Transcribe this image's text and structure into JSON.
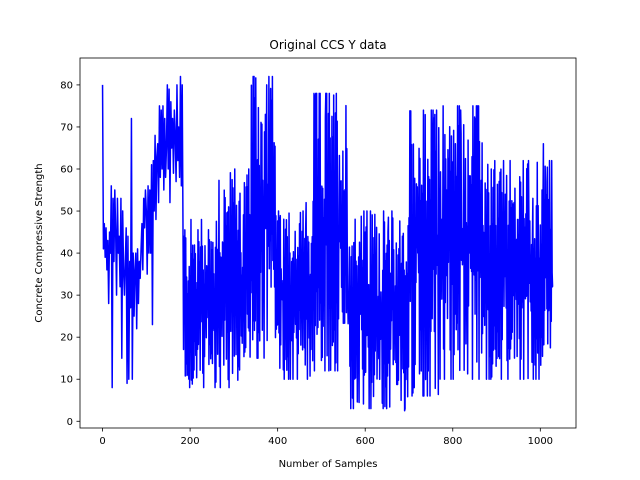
{
  "chart_data": {
    "type": "line",
    "title": "Original CCS Y data",
    "xlabel": "Number of Samples",
    "ylabel": "Concrete Compressive Strength",
    "xlim": [
      -51.5,
      1081.5
    ],
    "ylim": [
      -1.6,
      86.4
    ],
    "xticks": [
      0,
      200,
      400,
      600,
      800,
      1000
    ],
    "yticks": [
      0,
      10,
      20,
      30,
      40,
      50,
      60,
      70,
      80
    ],
    "grid": false,
    "series": [
      {
        "color": "#0000ff",
        "n_points": 1030,
        "waypoints": [
          [
            0,
            80
          ],
          [
            2,
            41
          ],
          [
            4,
            47
          ],
          [
            6,
            39
          ],
          [
            8,
            46
          ],
          [
            10,
            36
          ],
          [
            12,
            43
          ],
          [
            14,
            28
          ],
          [
            16,
            45
          ],
          [
            18,
            40
          ],
          [
            20,
            56
          ],
          [
            22,
            8
          ],
          [
            24,
            53
          ],
          [
            26,
            38
          ],
          [
            28,
            55
          ],
          [
            30,
            45
          ],
          [
            32,
            30
          ],
          [
            34,
            53
          ],
          [
            36,
            40
          ],
          [
            38,
            44
          ],
          [
            40,
            32
          ],
          [
            42,
            53
          ],
          [
            44,
            15
          ],
          [
            46,
            50
          ],
          [
            48,
            36
          ],
          [
            50,
            30
          ],
          [
            52,
            38
          ],
          [
            54,
            46
          ],
          [
            56,
            9
          ],
          [
            58,
            44
          ],
          [
            60,
            10
          ],
          [
            62,
            38
          ],
          [
            64,
            27
          ],
          [
            66,
            72
          ],
          [
            68,
            10
          ],
          [
            70,
            40
          ],
          [
            72,
            25
          ],
          [
            74,
            36
          ],
          [
            76,
            40
          ],
          [
            78,
            22
          ],
          [
            80,
            41
          ],
          [
            82,
            28
          ],
          [
            84,
            38
          ],
          [
            86,
            34
          ],
          [
            88,
            41
          ],
          [
            90,
            47
          ],
          [
            92,
            36
          ],
          [
            94,
            53
          ],
          [
            96,
            46
          ],
          [
            98,
            55
          ],
          [
            100,
            50
          ],
          [
            102,
            35
          ],
          [
            104,
            56
          ],
          [
            106,
            40
          ],
          [
            108,
            55
          ],
          [
            110,
            40
          ],
          [
            112,
            61
          ],
          [
            114,
            23
          ],
          [
            116,
            62
          ],
          [
            118,
            50
          ],
          [
            120,
            68
          ],
          [
            122,
            48
          ],
          [
            124,
            63
          ],
          [
            126,
            66
          ],
          [
            128,
            52
          ],
          [
            130,
            75
          ],
          [
            132,
            58
          ],
          [
            134,
            74
          ],
          [
            136,
            60
          ],
          [
            138,
            75
          ],
          [
            140,
            55
          ],
          [
            142,
            72
          ],
          [
            144,
            58
          ],
          [
            146,
            65
          ],
          [
            148,
            80
          ],
          [
            150,
            60
          ],
          [
            152,
            79
          ],
          [
            154,
            52
          ],
          [
            156,
            76
          ],
          [
            158,
            65
          ],
          [
            160,
            72
          ],
          [
            162,
            59
          ],
          [
            164,
            74
          ],
          [
            166,
            68
          ],
          [
            168,
            57
          ],
          [
            170,
            80
          ],
          [
            172,
            62
          ],
          [
            174,
            70
          ],
          [
            176,
            58
          ],
          [
            178,
            82
          ],
          [
            180,
            56
          ],
          [
            182,
            80
          ]
        ],
        "random_section": {
          "x_start": 184,
          "x_end": 1029,
          "segments": [
            {
              "from": 184,
              "to": 260,
              "min": 8,
              "max": 48
            },
            {
              "from": 260,
              "to": 340,
              "min": 8,
              "max": 60
            },
            {
              "from": 340,
              "to": 395,
              "min": 15,
              "max": 82
            },
            {
              "from": 395,
              "to": 480,
              "min": 10,
              "max": 50
            },
            {
              "from": 480,
              "to": 560,
              "min": 12,
              "max": 78
            },
            {
              "from": 560,
              "to": 700,
              "min": 3,
              "max": 50
            },
            {
              "from": 700,
              "to": 770,
              "min": 6,
              "max": 74
            },
            {
              "from": 770,
              "to": 870,
              "min": 10,
              "max": 75
            },
            {
              "from": 870,
              "to": 1029,
              "min": 10,
              "max": 62
            }
          ],
          "spikes": [
            [
              375,
              80
            ],
            [
              380,
              82
            ],
            [
              465,
              52
            ],
            [
              510,
              78
            ],
            [
              540,
              50
            ],
            [
              552,
              48
            ],
            [
              575,
              40
            ],
            [
              600,
              45
            ],
            [
              652,
              45
            ],
            [
              690,
              2.5
            ],
            [
              712,
              8
            ],
            [
              752,
              67
            ],
            [
              755,
              74
            ],
            [
              764,
              38
            ],
            [
              786,
              55
            ],
            [
              800,
              48
            ],
            [
              806,
              66
            ],
            [
              817,
              51
            ],
            [
              818,
              74
            ],
            [
              838,
              45
            ],
            [
              858,
              49
            ],
            [
              872,
              42
            ],
            [
              920,
              54
            ],
            [
              940,
              52
            ],
            [
              948,
              48
            ],
            [
              973,
              62
            ],
            [
              983,
              53
            ],
            [
              996,
              36
            ],
            [
              1007,
              66
            ],
            [
              1012,
              57
            ],
            [
              1020,
              29
            ],
            [
              1022,
              43
            ],
            [
              1028,
              32
            ]
          ],
          "end_value": 32
        }
      }
    ]
  }
}
